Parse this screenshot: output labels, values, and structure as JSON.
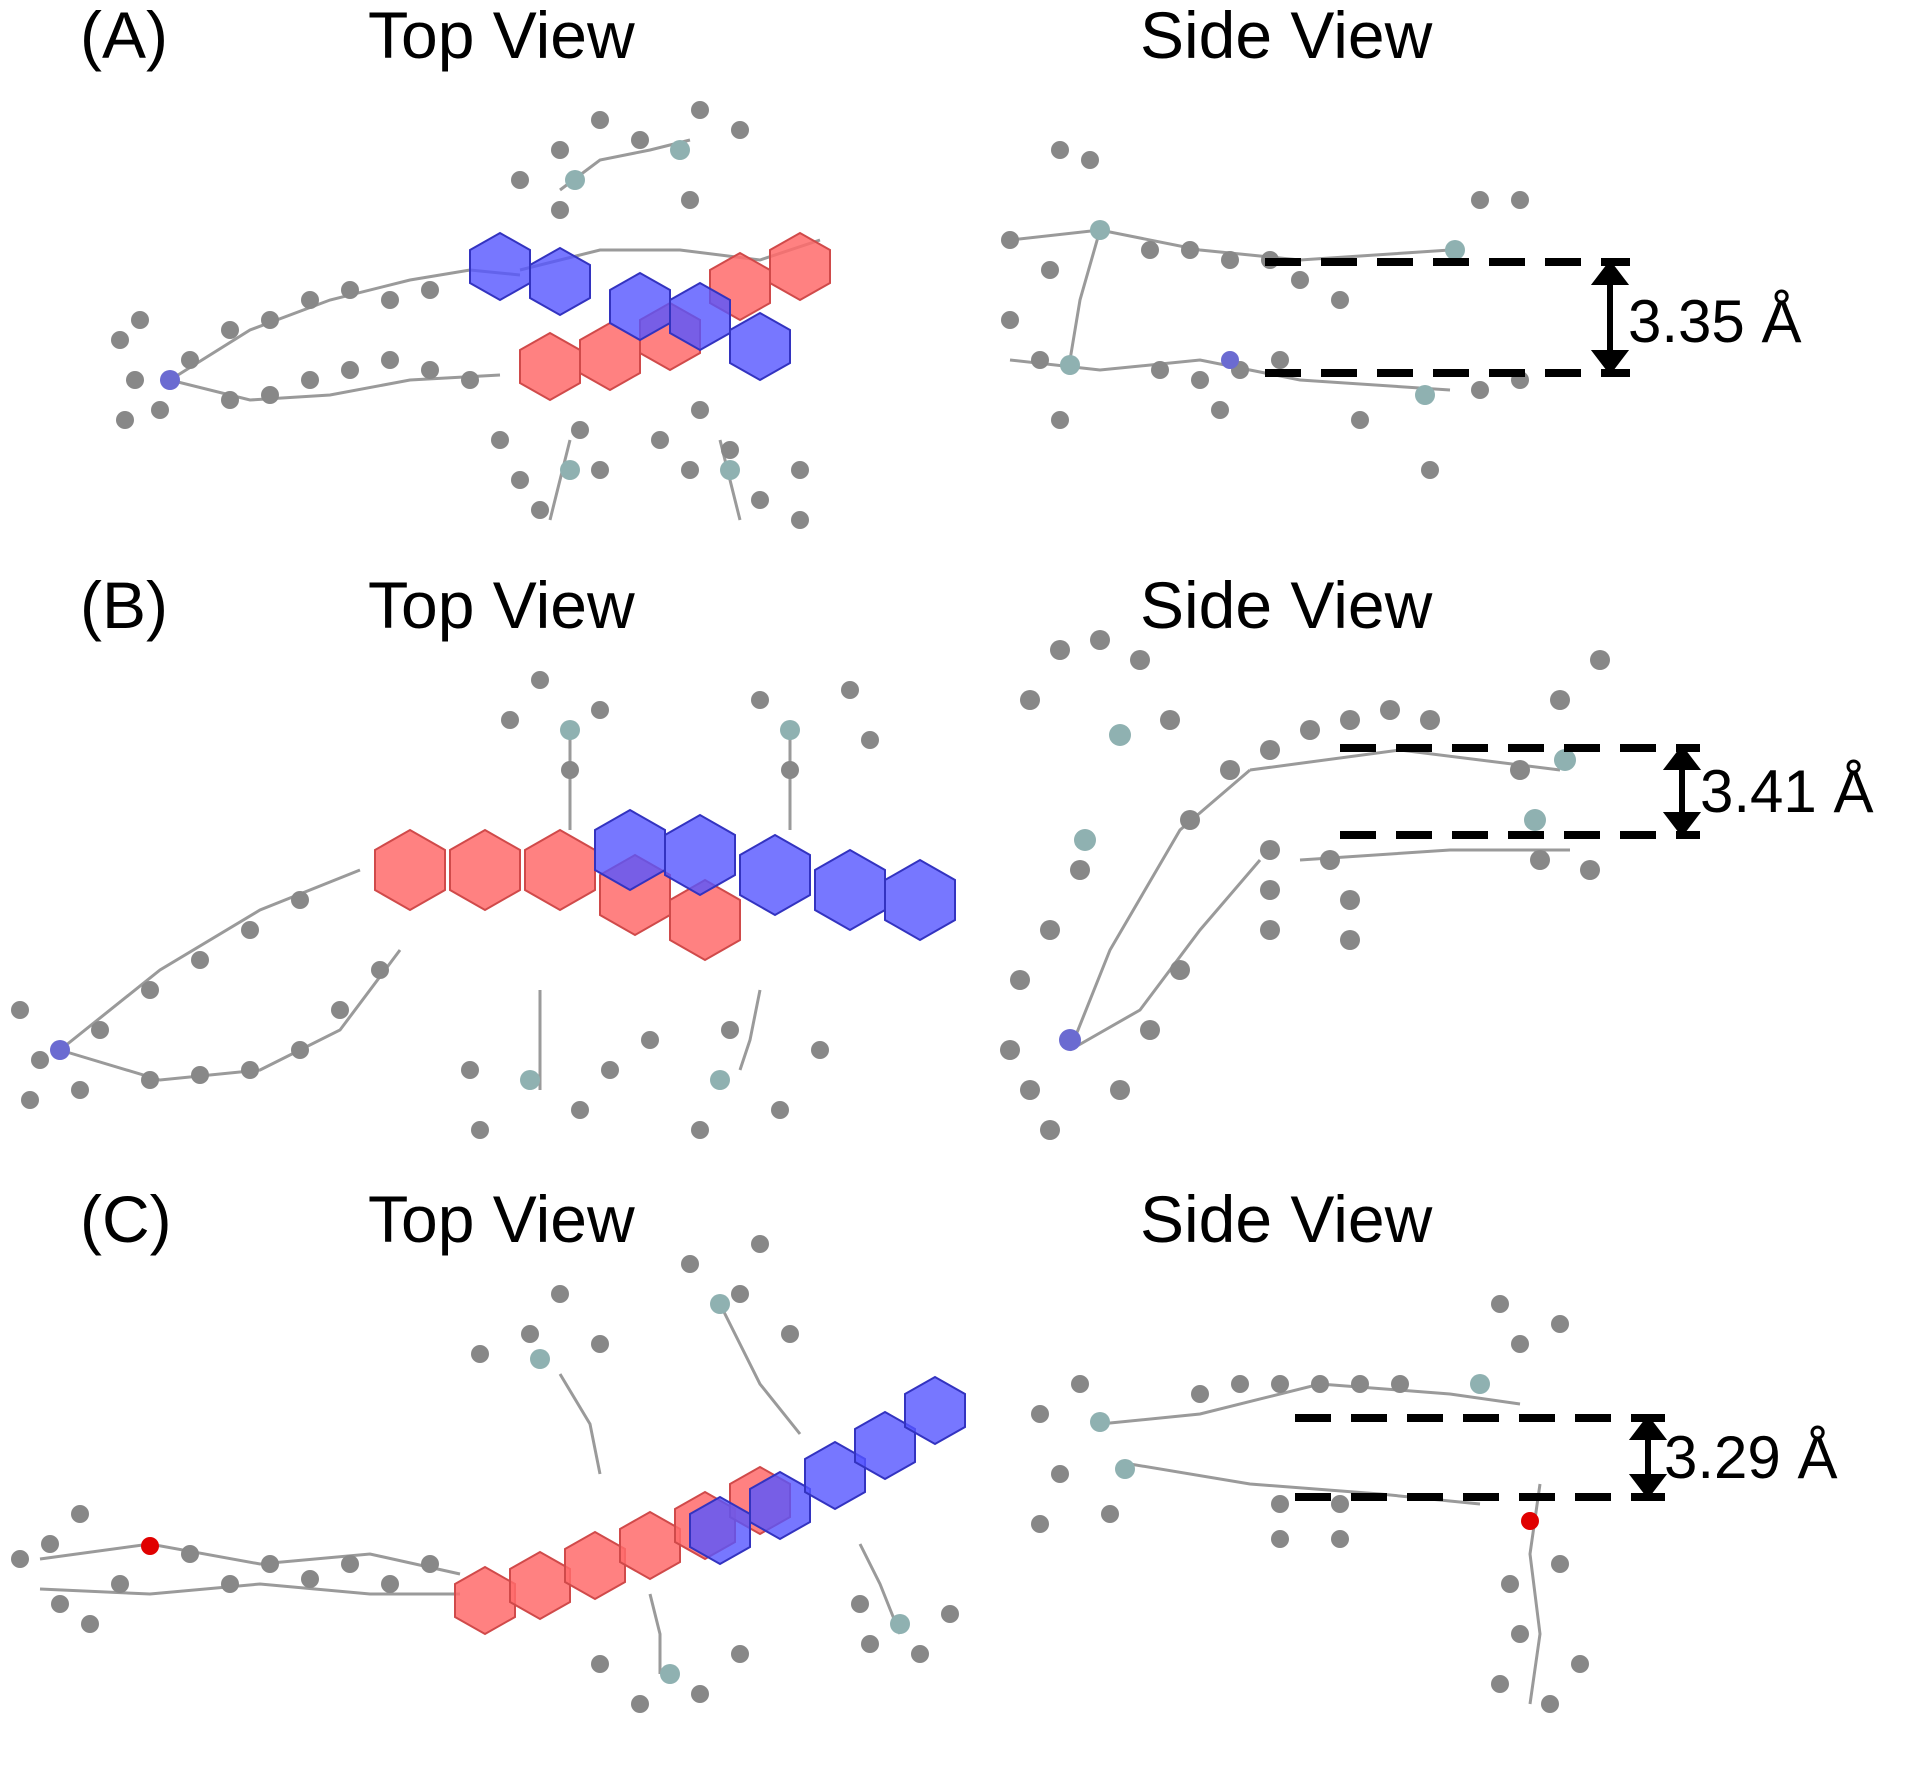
{
  "panels": [
    {
      "id": "A",
      "panel_label": "(A)",
      "top_view_label": "Top View",
      "side_view_label": "Side View",
      "distance_label": "3.35 Å",
      "distance_value": 3.35,
      "distance_unit": "Å"
    },
    {
      "id": "B",
      "panel_label": "(B)",
      "top_view_label": "Top View",
      "side_view_label": "Side View",
      "distance_label": "3.41 Å",
      "distance_value": 3.41,
      "distance_unit": "Å"
    },
    {
      "id": "C",
      "panel_label": "(C)",
      "top_view_label": "Top View",
      "side_view_label": "Side View",
      "distance_label": "3.29 Å",
      "distance_value": 3.29,
      "distance_unit": "Å"
    }
  ],
  "colors": {
    "carbon_atom": "#8a8a8a",
    "silicon_atom": "#8fb1b1",
    "metal_atom": "#6b6bd1",
    "oxygen_atom": "#e00000",
    "upper_ring_overlay": "#ff5a5a",
    "lower_ring_overlay": "#4a4aff",
    "dashed_line": "#000000"
  }
}
